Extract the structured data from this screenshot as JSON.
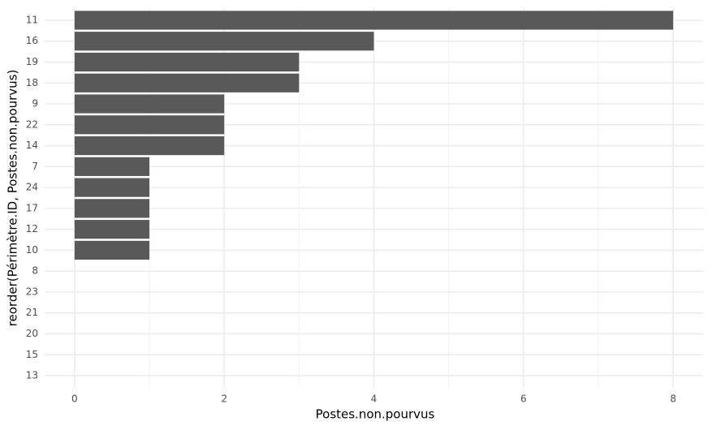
{
  "chart_data": {
    "type": "barh",
    "x_label": "Postes.non.pourvus",
    "y_label": "reorder(Périmètre.ID, Postes.non.pourvus)",
    "categories": [
      "11",
      "16",
      "19",
      "18",
      "9",
      "22",
      "14",
      "7",
      "24",
      "17",
      "12",
      "10",
      "8",
      "23",
      "21",
      "20",
      "15",
      "13"
    ],
    "values": [
      8,
      4,
      3,
      3,
      2,
      2,
      2,
      1,
      1,
      1,
      1,
      1,
      0,
      0,
      0,
      0,
      0,
      0
    ],
    "color": "#595959",
    "xlim": [
      -0.4,
      8.4
    ],
    "xticks": [
      0,
      2,
      4,
      6,
      8
    ],
    "grid": true
  }
}
